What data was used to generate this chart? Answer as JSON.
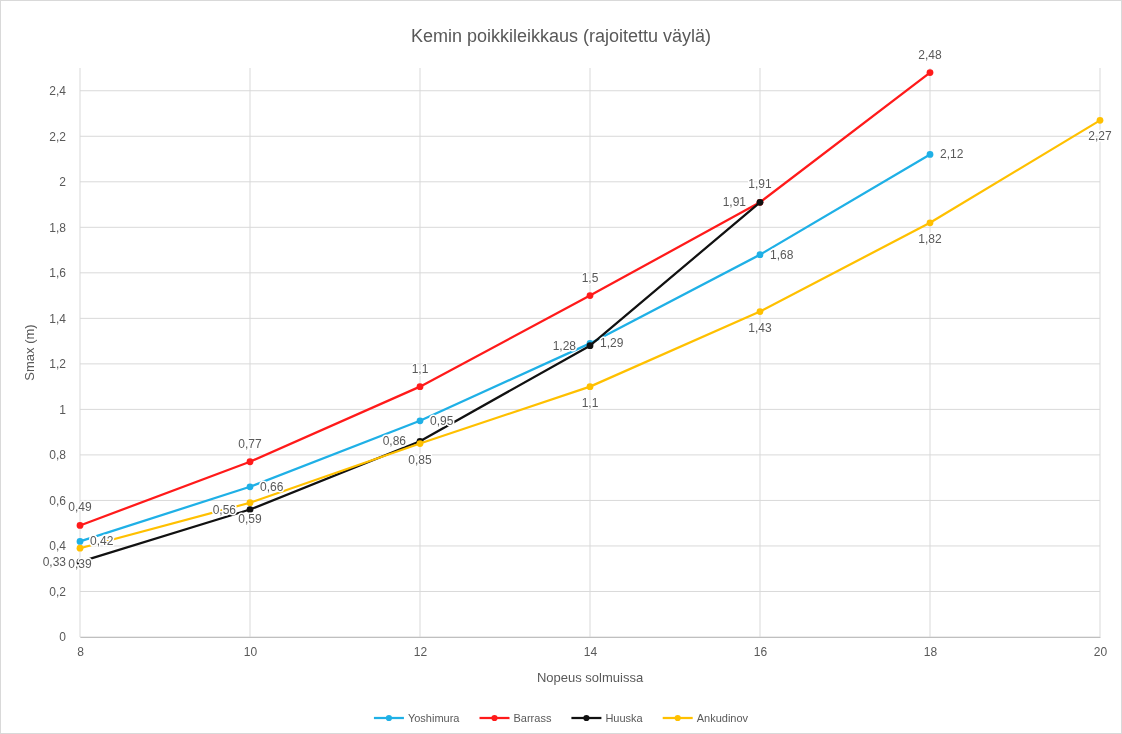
{
  "chart_data": {
    "type": "line",
    "title": "Kemin poikkileikkaus (rajoitettu väylä)",
    "xlabel": "Nopeus solmuissa",
    "ylabel": "Smax (m)",
    "x": [
      8,
      10,
      12,
      14,
      16,
      18,
      20
    ],
    "xlim": [
      8,
      20
    ],
    "xticks": [
      8,
      10,
      12,
      14,
      16,
      18,
      20
    ],
    "ylim": [
      0,
      2.5
    ],
    "yticks": [
      0,
      {
        "value": 0.2,
        "label": "0,2"
      },
      {
        "value": 0.4,
        "label": "0,4"
      },
      {
        "value": 0.6,
        "label": "0,6"
      },
      {
        "value": 0.8,
        "label": "0,8"
      },
      1,
      {
        "value": 1.2,
        "label": "1,2"
      },
      {
        "value": 1.4,
        "label": "1,4"
      },
      {
        "value": 1.6,
        "label": "1,6"
      },
      {
        "value": 1.8,
        "label": "1,8"
      },
      2,
      {
        "value": 2.2,
        "label": "2,2"
      },
      {
        "value": 2.4,
        "label": "2,4"
      }
    ],
    "grid": true,
    "legend": "bottom",
    "marker": "circle",
    "line_style": "solid",
    "series": [
      {
        "name": "Yoshimura",
        "color": "#1fb0e6",
        "values": [
          0.42,
          0.66,
          0.95,
          1.29,
          1.68,
          2.12,
          null
        ],
        "value_labels": [
          "0,42",
          "0,66",
          "0,95",
          "1,29",
          "1,68",
          "2,12",
          null
        ]
      },
      {
        "name": "Barrass",
        "color": "#ff1a1a",
        "values": [
          0.49,
          0.77,
          1.1,
          1.5,
          1.91,
          2.48,
          null
        ],
        "value_labels": [
          "0,49",
          "0,77",
          "1,1",
          "1,5",
          "1,91",
          "2,48",
          null
        ]
      },
      {
        "name": "Huuska",
        "color": "#111111",
        "values": [
          0.33,
          0.56,
          0.86,
          1.28,
          1.91,
          null,
          null
        ],
        "value_labels": [
          "0,33",
          "0,56",
          "0,86",
          "1,28",
          "1,91",
          null,
          null
        ]
      },
      {
        "name": "Ankudinov",
        "color": "#ffc000",
        "values": [
          0.39,
          0.59,
          0.85,
          1.1,
          1.43,
          1.82,
          2.27
        ],
        "value_labels": [
          "0,39",
          "0,59",
          "0,85",
          "1,1",
          "1,43",
          "1,82",
          "2,27"
        ]
      }
    ]
  }
}
